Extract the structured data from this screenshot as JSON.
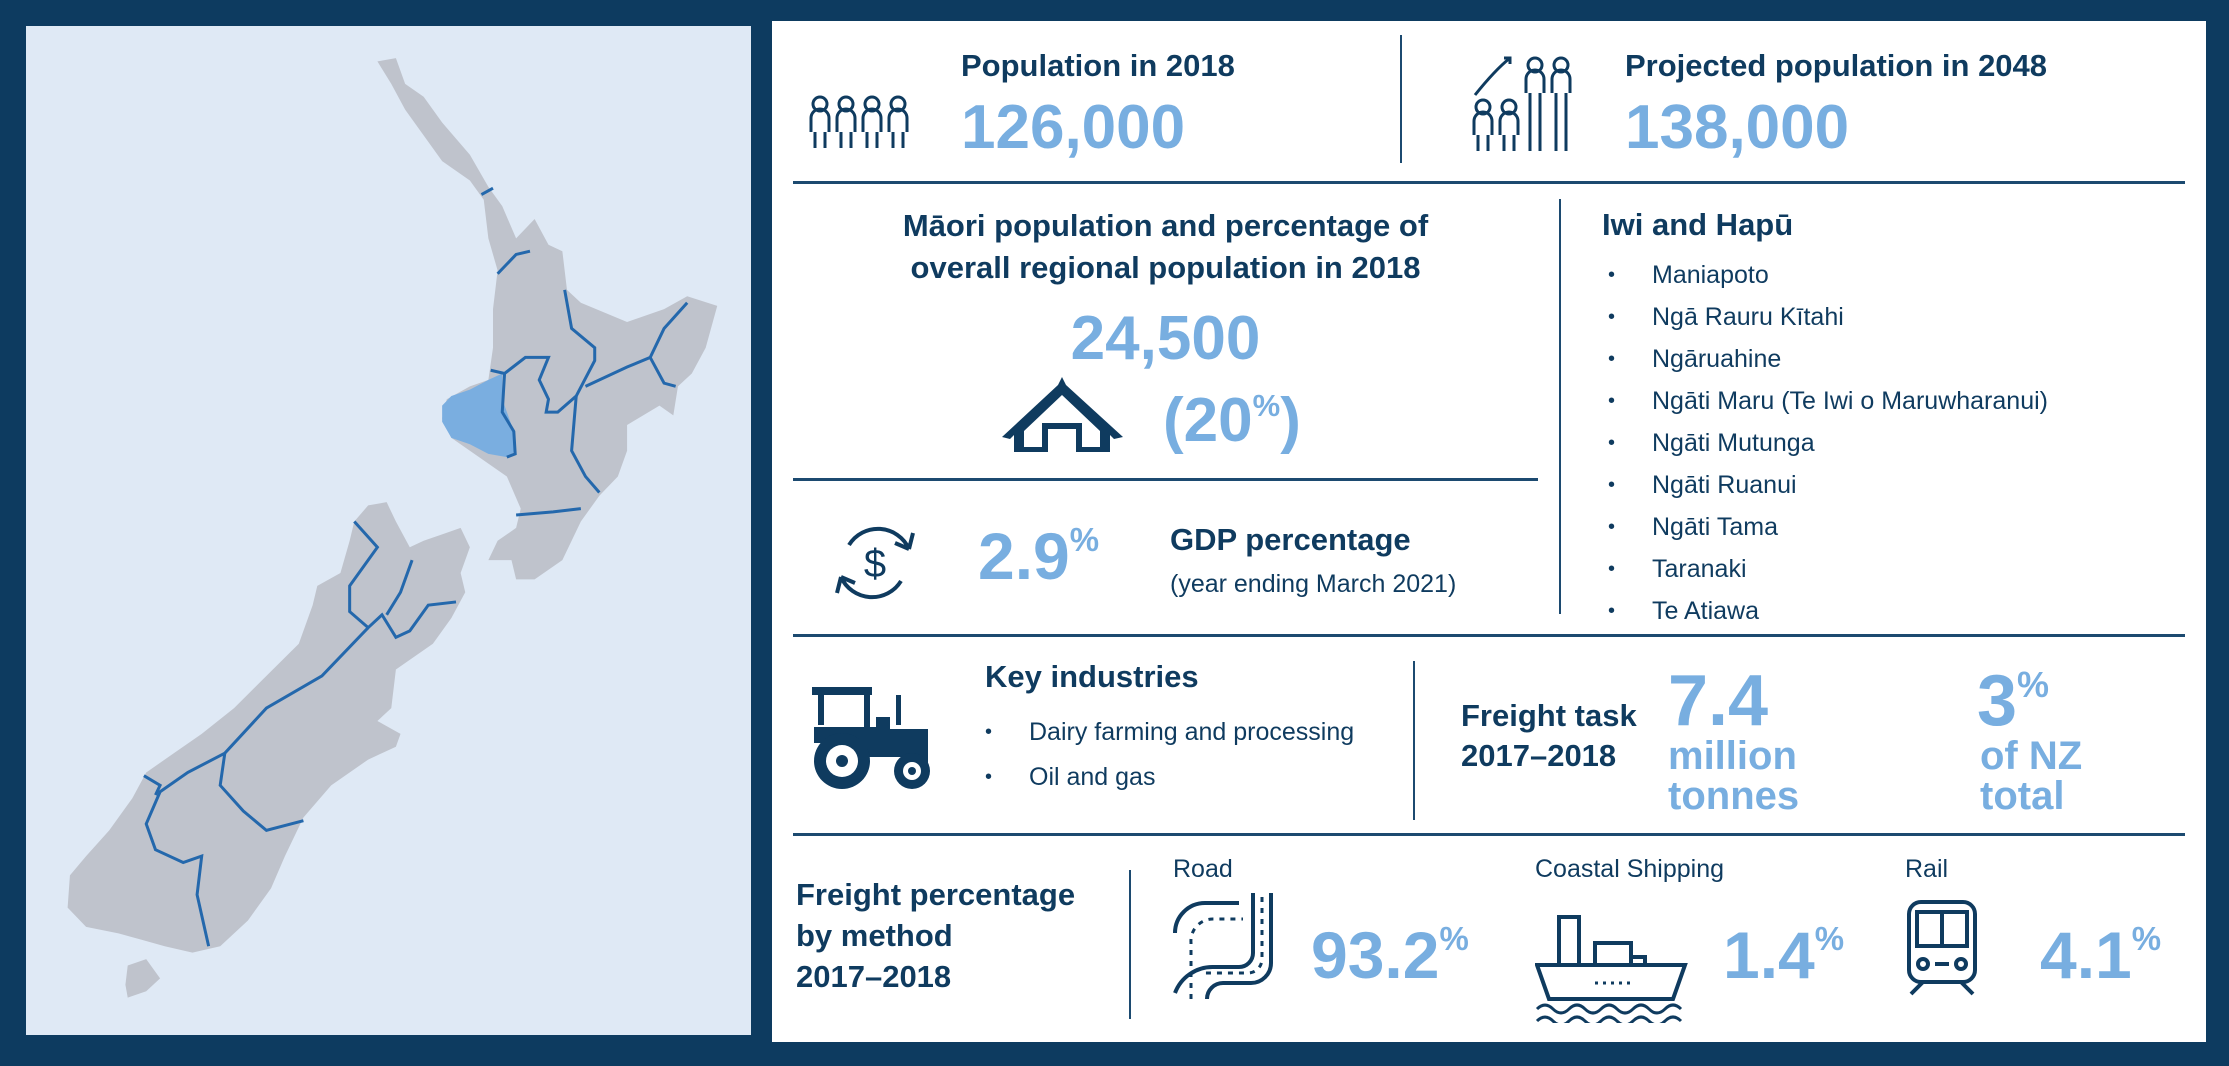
{
  "population": {
    "label": "Population in 2018",
    "value": "126,000"
  },
  "projected": {
    "label": "Projected population in 2048",
    "value": "138,000"
  },
  "maori": {
    "heading_line1": "Māori population and percentage of",
    "heading_line2": "overall regional population in 2018",
    "value": "24,500",
    "percent": "(20",
    "percent_sign": "%",
    "percent_close": ")"
  },
  "gdp": {
    "value": "2.9",
    "sign": "%",
    "label": "GDP percentage",
    "note": "(year ending March 2021)"
  },
  "iwi": {
    "heading": "Iwi and Hapū",
    "items": [
      "Maniapoto",
      "Ngā Rauru Kītahi",
      "Ngāruahine",
      "Ngāti Maru (Te Iwi o Maruwharanui)",
      "Ngāti Mutunga",
      "Ngāti Ruanui",
      "Ngāti Tama",
      "Taranaki",
      "Te Atiawa"
    ]
  },
  "industries": {
    "heading": "Key industries",
    "items": [
      "Dairy farming and processing",
      "Oil and gas"
    ]
  },
  "freight_task": {
    "label_line1": "Freight task",
    "label_line2": "2017–2018",
    "tonnes": "7.4",
    "tonnes_unit_1": "million",
    "tonnes_unit_2": "tonnes",
    "share": "3",
    "share_sign": "%",
    "share_unit_1": "of NZ",
    "share_unit_2": "total"
  },
  "freight_method": {
    "label_line1": "Freight percentage",
    "label_line2": "by method",
    "label_line3": "2017–2018",
    "methods": [
      {
        "label": "Road",
        "value": "93.2",
        "sign": "%",
        "icon": "road-icon"
      },
      {
        "label": "Coastal Shipping",
        "value": "1.4",
        "sign": "%",
        "icon": "ship-icon"
      },
      {
        "label": "Rail",
        "value": "4.1",
        "sign": "%",
        "icon": "train-icon"
      }
    ]
  },
  "map": {
    "highlighted_region": "Taranaki",
    "highlight_color": "#7aaee0",
    "land_color": "#bfc3cc",
    "boundary_color": "#2468ac"
  },
  "colors": {
    "navy": "#0f3b5f",
    "accent": "#78aee0"
  }
}
